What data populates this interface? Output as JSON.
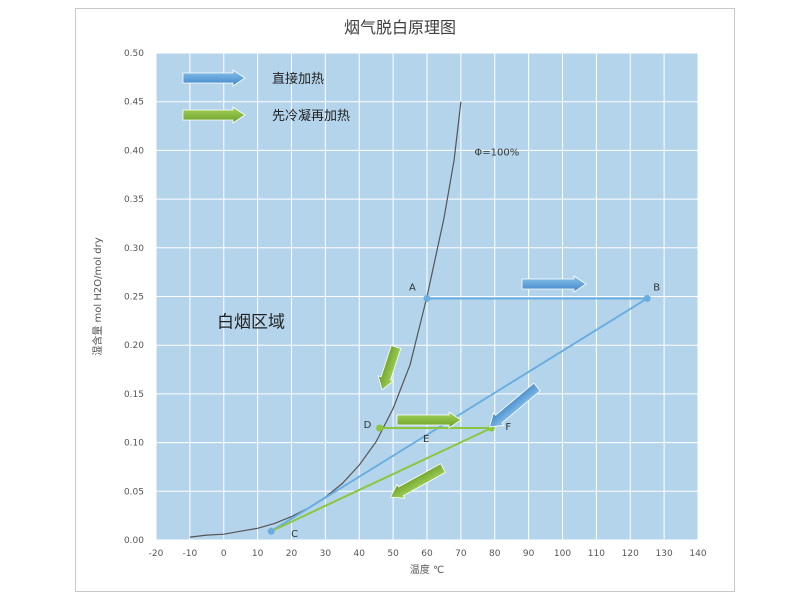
{
  "chart_data": {
    "type": "line",
    "title": "烟气脱白原理图",
    "xlabel": "温度 ℃",
    "ylabel": "湿含量 mol H2O/mol dry",
    "xlim": [
      -20,
      140
    ],
    "ylim": [
      0,
      0.5
    ],
    "xticks": [
      -20,
      -10,
      0,
      10,
      20,
      30,
      40,
      50,
      60,
      70,
      80,
      90,
      100,
      110,
      120,
      130,
      140
    ],
    "yticks": [
      0.0,
      0.05,
      0.1,
      0.15,
      0.2,
      0.25,
      0.3,
      0.35,
      0.4,
      0.45,
      0.5
    ],
    "xtick_labels": [
      "-20",
      "-10",
      "0",
      "10",
      "20",
      "30",
      "40",
      "50",
      "60",
      "70",
      "80",
      "90",
      "100",
      "110",
      "120",
      "130",
      "140"
    ],
    "ytick_labels": [
      "0.00",
      "0.05",
      "0.10",
      "0.15",
      "0.20",
      "0.25",
      "0.30",
      "0.35",
      "0.40",
      "0.45",
      "0.50"
    ],
    "grid": true,
    "saturation_curve": {
      "name": "Φ=100%",
      "x": [
        -10,
        -5,
        0,
        5,
        10,
        15,
        20,
        25,
        30,
        35,
        40,
        45,
        50,
        55,
        60,
        65,
        68,
        70
      ],
      "y": [
        0.003,
        0.005,
        0.006,
        0.009,
        0.012,
        0.017,
        0.024,
        0.033,
        0.044,
        0.058,
        0.077,
        0.101,
        0.135,
        0.18,
        0.25,
        0.33,
        0.39,
        0.45
      ]
    },
    "points": [
      {
        "name": "A",
        "x": 60,
        "y": 0.248
      },
      {
        "name": "B",
        "x": 125,
        "y": 0.248
      },
      {
        "name": "C",
        "x": 14,
        "y": 0.009
      },
      {
        "name": "D",
        "x": 46,
        "y": 0.115
      },
      {
        "name": "E",
        "x": 60,
        "y": 0.115
      },
      {
        "name": "F",
        "x": 79,
        "y": 0.115
      }
    ],
    "paths": [
      {
        "from": "A",
        "to": "B",
        "color": "#6aaee0"
      },
      {
        "from": "B",
        "to": "C",
        "color": "#6aaee0"
      },
      {
        "from": "D",
        "to": "F",
        "color": "#8cc63f"
      },
      {
        "from": "F",
        "to": "C",
        "color": "#8cc63f"
      }
    ],
    "legend": [
      {
        "label": "直接加热",
        "color": "#5b9bd5"
      },
      {
        "label": "先冷凝再加热",
        "color": "#7cb342"
      }
    ],
    "region_label": "白烟区域",
    "curve_label": "Φ=100%",
    "colors": {
      "plot_bg": "#b4d4ec",
      "grid": "#ffffff",
      "curve": "#555555"
    }
  }
}
